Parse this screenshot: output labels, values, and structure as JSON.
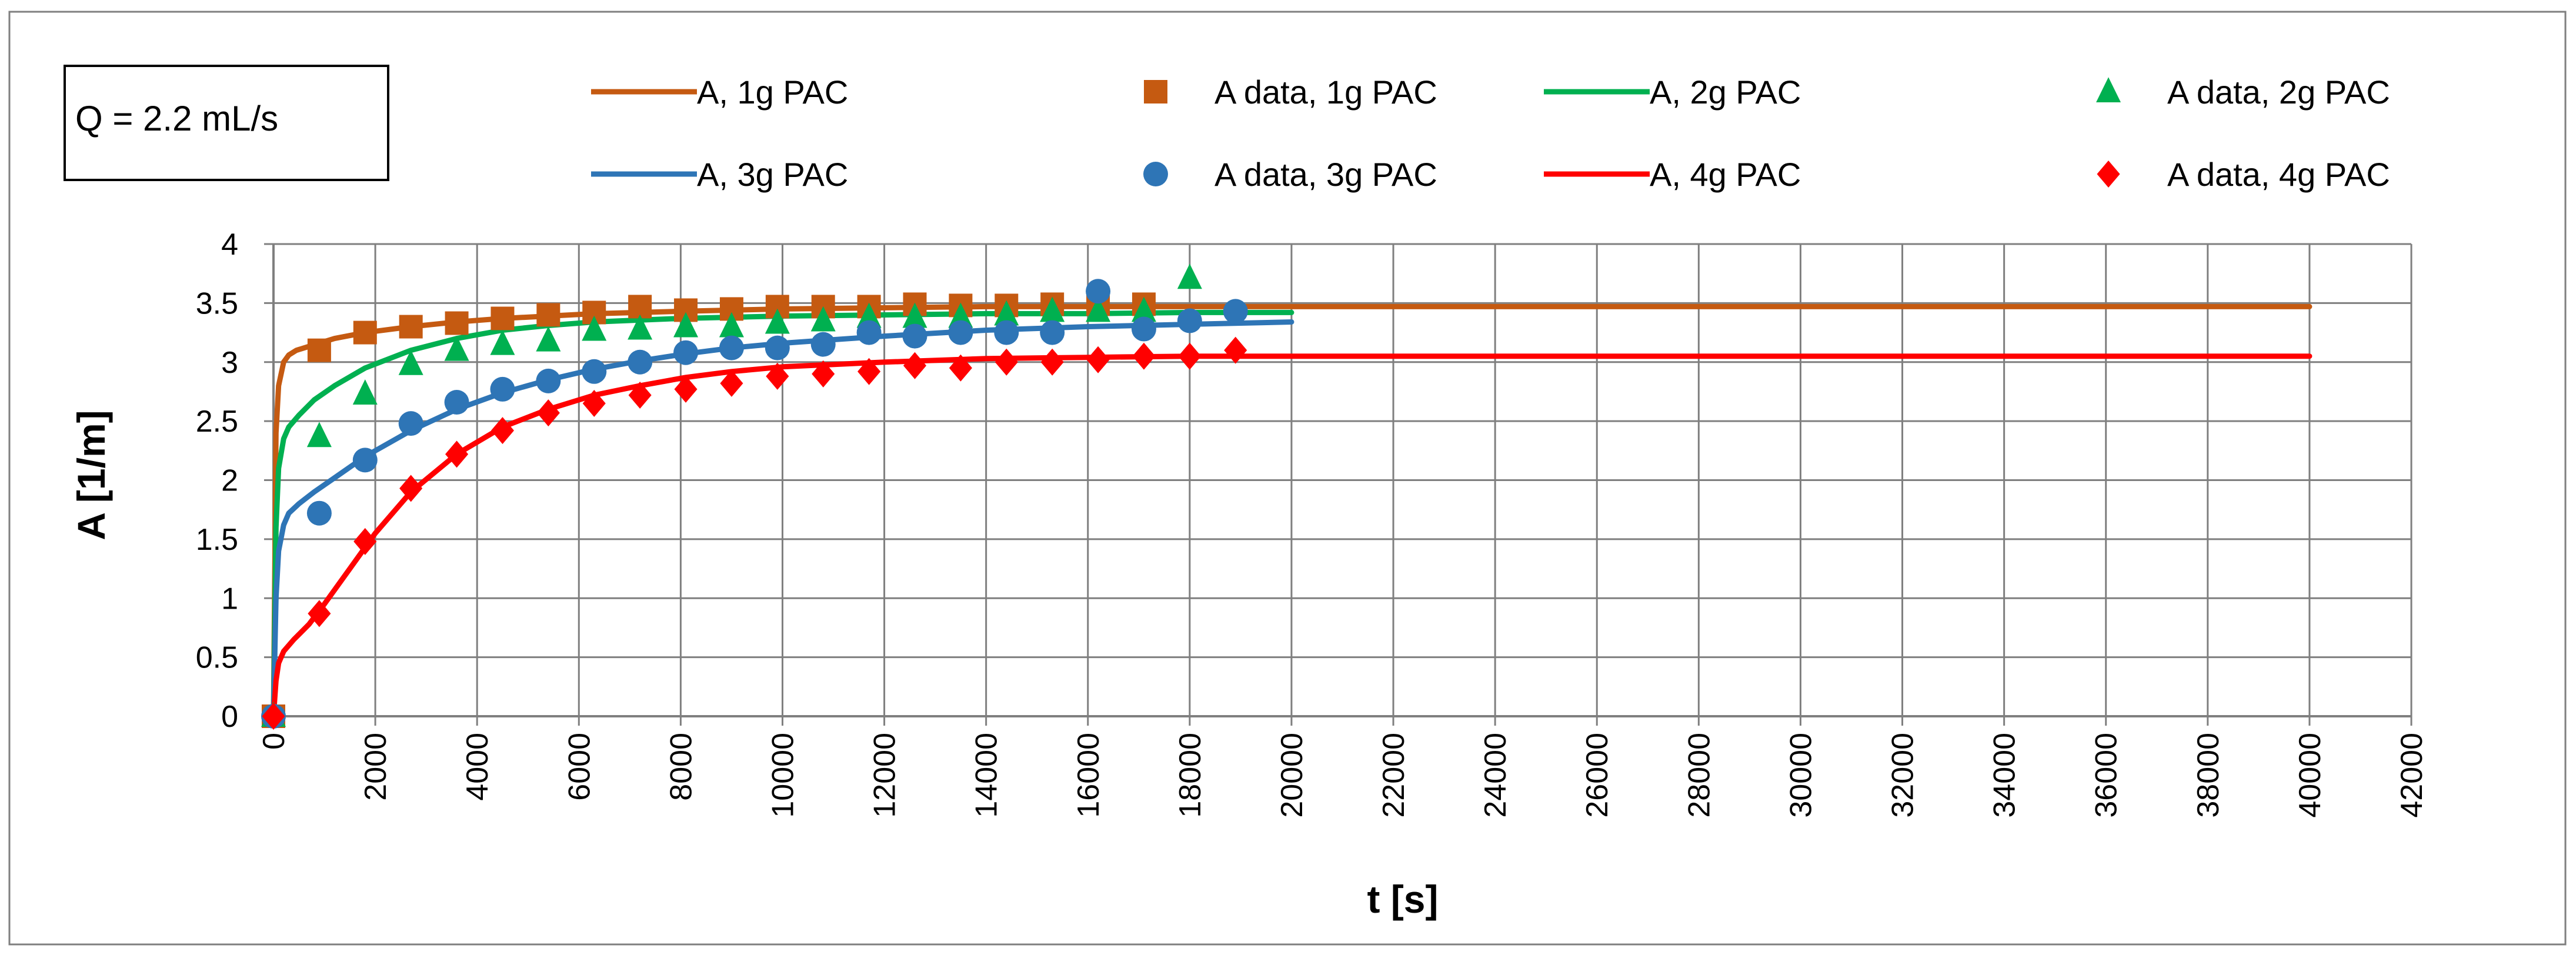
{
  "annotation": "Q = 2.2 mL/s",
  "chart_data": {
    "type": "scatter",
    "xlabel": "t [s]",
    "ylabel": "A [1/m]",
    "xlim": [
      0,
      42000
    ],
    "ylim": [
      0,
      4
    ],
    "xticks": [
      0,
      2000,
      4000,
      6000,
      8000,
      10000,
      12000,
      14000,
      16000,
      18000,
      20000,
      22000,
      24000,
      26000,
      28000,
      30000,
      32000,
      34000,
      36000,
      38000,
      40000,
      42000
    ],
    "yticks": [
      0,
      0.5,
      1,
      1.5,
      2,
      2.5,
      3,
      3.5,
      4
    ],
    "ytick_labels": [
      "0",
      "0.5",
      "1",
      "1.5",
      "2",
      "2.5",
      "3",
      "3.5",
      "4"
    ],
    "grid": true,
    "legend_position": "top",
    "series": [
      {
        "name": "A, 1g PAC",
        "kind": "line",
        "color": "#C55A11",
        "x": [
          0,
          50,
          100,
          200,
          300,
          450,
          600,
          900,
          1200,
          1800,
          2700,
          3600,
          4500,
          5400,
          6300,
          8000,
          10000,
          12000,
          14000,
          16000,
          18000,
          20000,
          30000,
          40000
        ],
        "y": [
          0,
          2.4,
          2.8,
          3.0,
          3.06,
          3.1,
          3.12,
          3.16,
          3.2,
          3.25,
          3.3,
          3.34,
          3.37,
          3.39,
          3.41,
          3.43,
          3.45,
          3.46,
          3.47,
          3.47,
          3.47,
          3.47,
          3.47,
          3.47
        ]
      },
      {
        "name": "A data, 1g PAC",
        "kind": "marker",
        "marker": "square",
        "color": "#C55A11",
        "x": [
          0,
          900,
          1800,
          2700,
          3600,
          4500,
          5400,
          6300,
          7200,
          8100,
          9000,
          9900,
          10800,
          11700,
          12600,
          13500,
          14400,
          15300,
          16200,
          17100
        ],
        "y": [
          0,
          3.1,
          3.25,
          3.3,
          3.33,
          3.37,
          3.4,
          3.42,
          3.47,
          3.44,
          3.45,
          3.47,
          3.47,
          3.47,
          3.49,
          3.48,
          3.48,
          3.49,
          3.49,
          3.49
        ]
      },
      {
        "name": "A, 2g PAC",
        "kind": "line",
        "color": "#00B050",
        "x": [
          0,
          50,
          100,
          200,
          300,
          500,
          800,
          1200,
          1800,
          2700,
          3600,
          4500,
          5400,
          6300,
          8000,
          10000,
          12000,
          14000,
          16000,
          18000,
          20000
        ],
        "y": [
          0,
          1.6,
          2.1,
          2.35,
          2.45,
          2.55,
          2.68,
          2.8,
          2.95,
          3.1,
          3.2,
          3.27,
          3.31,
          3.34,
          3.37,
          3.39,
          3.4,
          3.41,
          3.41,
          3.42,
          3.42
        ]
      },
      {
        "name": "A data, 2g PAC",
        "kind": "marker",
        "marker": "triangle",
        "color": "#00B050",
        "x": [
          0,
          900,
          1800,
          2700,
          3600,
          4500,
          5400,
          6300,
          7200,
          8100,
          9000,
          9900,
          10800,
          11700,
          12600,
          13500,
          14400,
          15300,
          16200,
          17100,
          18000
        ],
        "y": [
          0,
          2.37,
          2.73,
          2.98,
          3.1,
          3.15,
          3.18,
          3.27,
          3.28,
          3.3,
          3.3,
          3.33,
          3.35,
          3.38,
          3.38,
          3.38,
          3.4,
          3.43,
          3.43,
          3.43,
          3.71
        ]
      },
      {
        "name": "A, 3g PAC",
        "kind": "line",
        "color": "#2E75B6",
        "x": [
          0,
          50,
          100,
          200,
          300,
          500,
          800,
          1200,
          1800,
          2700,
          3600,
          4500,
          5400,
          6300,
          7200,
          8100,
          9000,
          10000,
          12000,
          14000,
          16000,
          18000,
          20000
        ],
        "y": [
          0,
          1.0,
          1.4,
          1.62,
          1.72,
          1.8,
          1.9,
          2.02,
          2.2,
          2.42,
          2.6,
          2.74,
          2.85,
          2.94,
          3.01,
          3.07,
          3.12,
          3.16,
          3.22,
          3.27,
          3.3,
          3.32,
          3.34
        ]
      },
      {
        "name": "A data, 3g PAC",
        "kind": "marker",
        "marker": "circle",
        "color": "#2E75B6",
        "x": [
          0,
          900,
          1800,
          2700,
          3600,
          4500,
          5400,
          6300,
          7200,
          8100,
          9000,
          9900,
          10800,
          11700,
          12600,
          13500,
          14400,
          15300,
          16200,
          17100,
          18000,
          18900
        ],
        "y": [
          0,
          1.72,
          2.17,
          2.48,
          2.66,
          2.77,
          2.84,
          2.92,
          3.0,
          3.08,
          3.12,
          3.12,
          3.15,
          3.25,
          3.22,
          3.25,
          3.25,
          3.25,
          3.6,
          3.28,
          3.35,
          3.43
        ]
      },
      {
        "name": "A, 4g PAC",
        "kind": "line",
        "color": "#FF0000",
        "x": [
          0,
          50,
          100,
          200,
          400,
          700,
          1000,
          1500,
          2000,
          2700,
          3600,
          4500,
          5400,
          6300,
          7200,
          8100,
          9000,
          10000,
          12000,
          14000,
          16000,
          18000,
          20000,
          30000,
          40000
        ],
        "y": [
          0,
          0.3,
          0.45,
          0.55,
          0.65,
          0.78,
          0.95,
          1.25,
          1.55,
          1.9,
          2.22,
          2.45,
          2.6,
          2.72,
          2.8,
          2.87,
          2.92,
          2.96,
          3.0,
          3.03,
          3.04,
          3.05,
          3.05,
          3.05,
          3.05
        ]
      },
      {
        "name": "A data, 4g PAC",
        "kind": "marker",
        "marker": "diamond",
        "color": "#FF0000",
        "x": [
          0,
          900,
          1800,
          2700,
          3600,
          4500,
          5400,
          6300,
          7200,
          8100,
          9000,
          9900,
          10800,
          11700,
          12600,
          13500,
          14400,
          15300,
          16200,
          17100,
          18000,
          18900
        ],
        "y": [
          0,
          0.87,
          1.48,
          1.93,
          2.22,
          2.42,
          2.57,
          2.65,
          2.72,
          2.77,
          2.82,
          2.88,
          2.9,
          2.92,
          2.97,
          2.95,
          3.0,
          3.0,
          3.02,
          3.05,
          3.05,
          3.1
        ]
      }
    ]
  }
}
